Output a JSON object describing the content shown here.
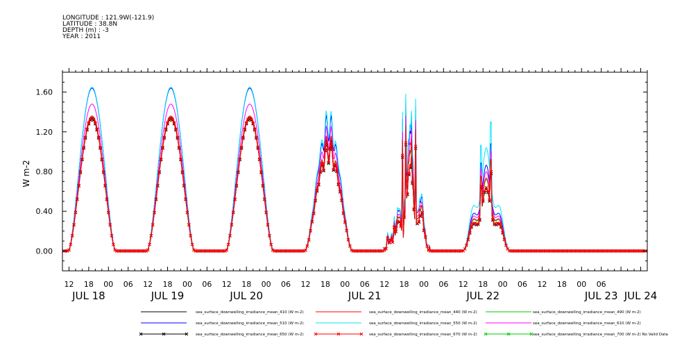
{
  "header": {
    "longitude": "LONGITUDE : 121.9W(-121.9)",
    "latitude": "LATITUDE : 38.8N",
    "depth": "DEPTH (m) : -3",
    "year": "YEAR : 2011"
  },
  "chart_data": {
    "type": "line",
    "ylabel": "W m-2",
    "ylim": [
      -0.2,
      1.8
    ],
    "yticks": [
      "0.00",
      "0.40",
      "0.80",
      "1.20",
      "1.60"
    ],
    "ytick_values": [
      0,
      0.4,
      0.8,
      1.2,
      1.6
    ],
    "xlim_hours": [
      -14,
      164
    ],
    "x_hour_labels": [
      "12",
      "18",
      "00",
      "06",
      "12",
      "18",
      "00",
      "06",
      "12",
      "18",
      "00",
      "06",
      "12",
      "18",
      "00",
      "06",
      "12",
      "18",
      "00",
      "06",
      "12",
      "18",
      "00",
      "06",
      "12",
      "18",
      "00",
      "06"
    ],
    "x_hour_values": [
      -12,
      -6,
      0,
      6,
      12,
      18,
      24,
      30,
      36,
      42,
      48,
      54,
      60,
      66,
      72,
      78,
      84,
      90,
      96,
      102,
      108,
      114,
      120,
      126,
      132,
      138,
      144,
      150
    ],
    "x_date_labels": [
      "JUL 18",
      "JUL 19",
      "JUL 20",
      "JUL 21",
      "JUL 22",
      "JUL 23",
      "JUL 24"
    ],
    "x_date_values": [
      -6,
      18,
      42,
      78,
      114,
      150,
      162
    ],
    "days": [
      {
        "label": "JUL 18",
        "peak_hour": -5,
        "shape": "clear"
      },
      {
        "label": "JUL 19",
        "peak_hour": 19,
        "shape": "clear"
      },
      {
        "label": "JUL 20",
        "peak_hour": 43,
        "shape": "clear"
      },
      {
        "label": "JUL 21",
        "peak_hour": 67,
        "shape": "cloudy"
      },
      {
        "label": "JUL 22",
        "peak_hour": 91,
        "shape": "spiky"
      },
      {
        "label": "JUL 23",
        "peak_hour": 115,
        "shape": "low"
      }
    ],
    "series": [
      {
        "name": "sea_surface_downwelling_irradiance_mean_410 (W m-2)",
        "color": "#000000",
        "marker": "none",
        "peak_clear": 1.34,
        "peak_jul21": 1.02,
        "peak_jul22": 1.12,
        "peak_jul23": 0.8
      },
      {
        "name": "sea_surface_downwelling_irradiance_mean_440 (W m-2)",
        "color": "#ff0000",
        "marker": "none",
        "peak_clear": 1.36,
        "peak_jul21": 1.06,
        "peak_jul22": 1.3,
        "peak_jul23": 0.92
      },
      {
        "name": "sea_surface_downwelling_irradiance_mean_490 (W m-2)",
        "color": "#00cc00",
        "marker": "none",
        "peak_clear": 1.35,
        "peak_jul21": 1.05,
        "peak_jul22": 1.28,
        "peak_jul23": 0.9
      },
      {
        "name": "sea_surface_downwelling_irradiance_mean_510 (W m-2)",
        "color": "#0000ff",
        "marker": "none",
        "peak_clear": 1.64,
        "peak_jul21": 1.25,
        "peak_jul22": 1.55,
        "peak_jul23": 1.08
      },
      {
        "name": "sea_surface_downwelling_irradiance_mean_550 (W m-2)",
        "color": "#00e5ff",
        "marker": "none",
        "peak_clear": 1.65,
        "peak_jul21": 1.29,
        "peak_jul22": 1.63,
        "peak_jul23": 1.3
      },
      {
        "name": "sea_surface_downwelling_irradiance_mean_610 (W m-2)",
        "color": "#ff00ff",
        "marker": "none",
        "peak_clear": 1.48,
        "peak_jul21": 1.15,
        "peak_jul22": 1.4,
        "peak_jul23": 1.0
      },
      {
        "name": "sea_surface_downwelling_irradiance_mean_650 (W m-2)",
        "color": "#000000",
        "marker": "x",
        "peak_clear": 1.33,
        "peak_jul21": 1.0,
        "peak_jul22": 1.1,
        "peak_jul23": 0.78
      },
      {
        "name": "sea_surface_downwelling_irradiance_mean_670 (W m-2)",
        "color": "#ff0000",
        "marker": "x",
        "peak_clear": 1.34,
        "peak_jul21": 1.01,
        "peak_jul22": 1.12,
        "peak_jul23": 0.8
      },
      {
        "name": "sea_surface_downwelling_irradiance_mean_700 (W m-2) No Valid Data",
        "color": "#00cc00",
        "marker": "x",
        "no_data": true
      }
    ]
  }
}
